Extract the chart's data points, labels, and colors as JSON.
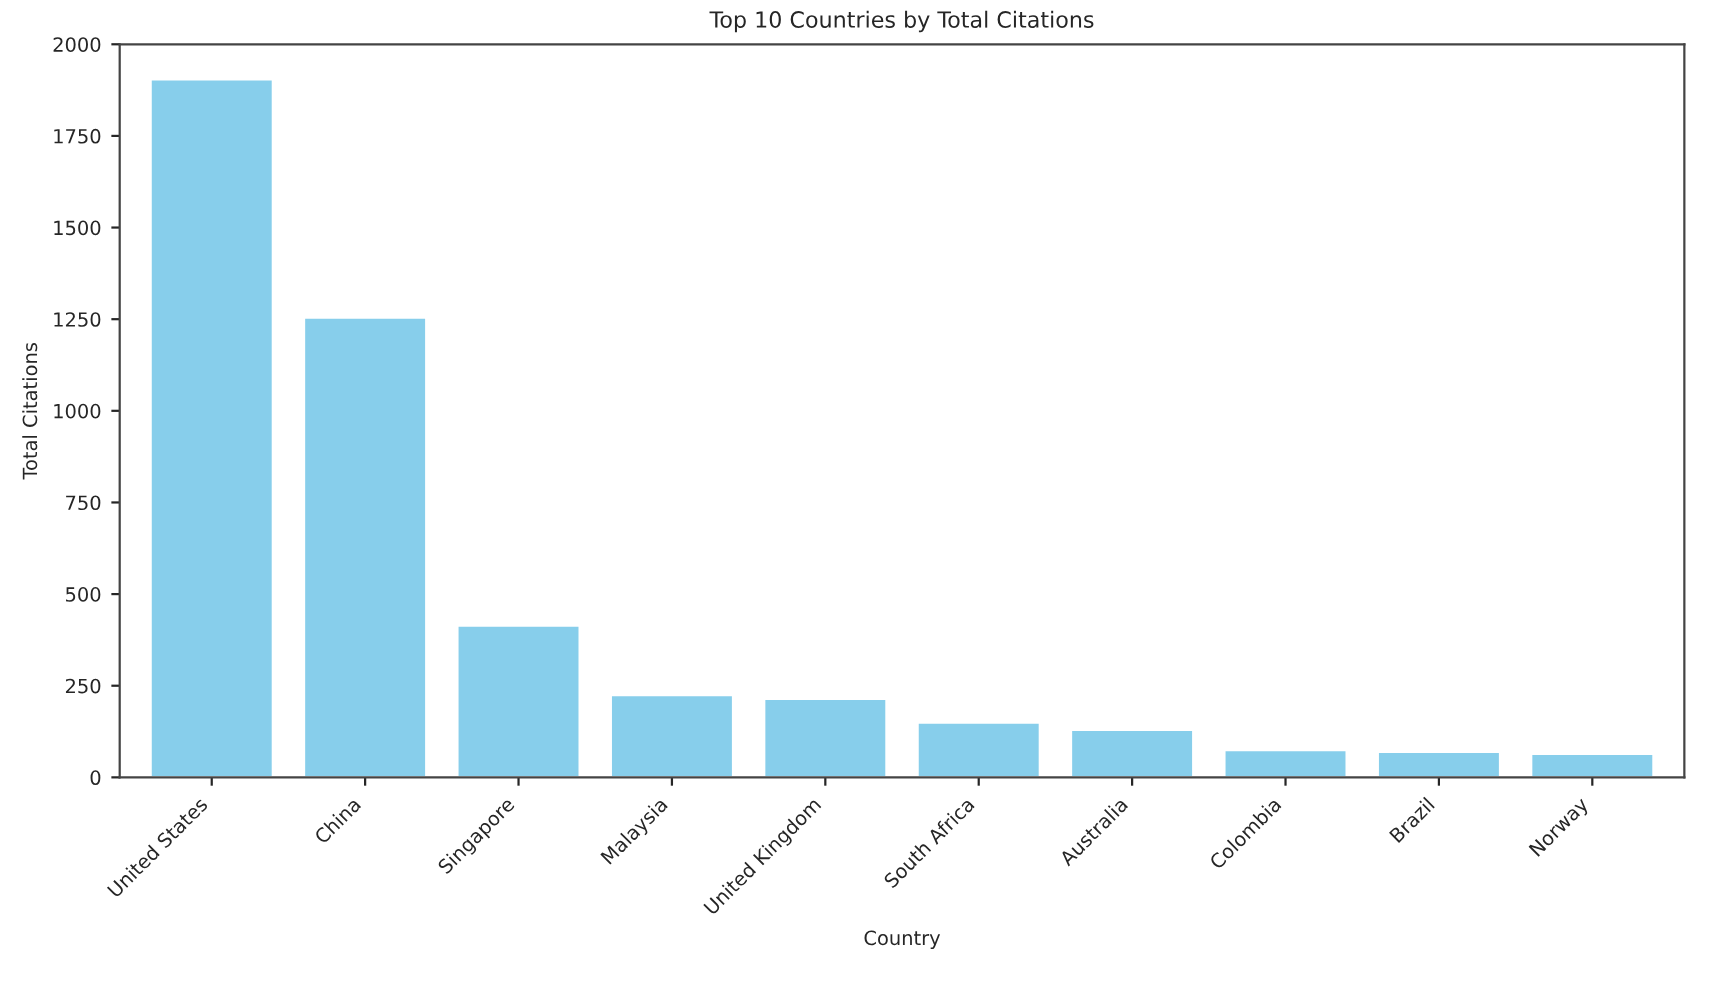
{
  "chart_data": {
    "type": "bar",
    "title": "Top 10 Countries by Total Citations",
    "xlabel": "Country",
    "ylabel": "Total Citations",
    "categories": [
      "United States",
      "China",
      "Singapore",
      "Malaysia",
      "United Kingdom",
      "South Africa",
      "Australia",
      "Colombia",
      "Brazil",
      "Norway"
    ],
    "values": [
      1905,
      1255,
      415,
      225,
      215,
      150,
      130,
      75,
      70,
      65
    ],
    "color": "#87ceeb",
    "ylim": [
      0,
      2000
    ],
    "yticks": [
      0,
      250,
      500,
      750,
      1000,
      1250,
      1500,
      1750,
      2000
    ],
    "grid": false,
    "legend": false
  }
}
